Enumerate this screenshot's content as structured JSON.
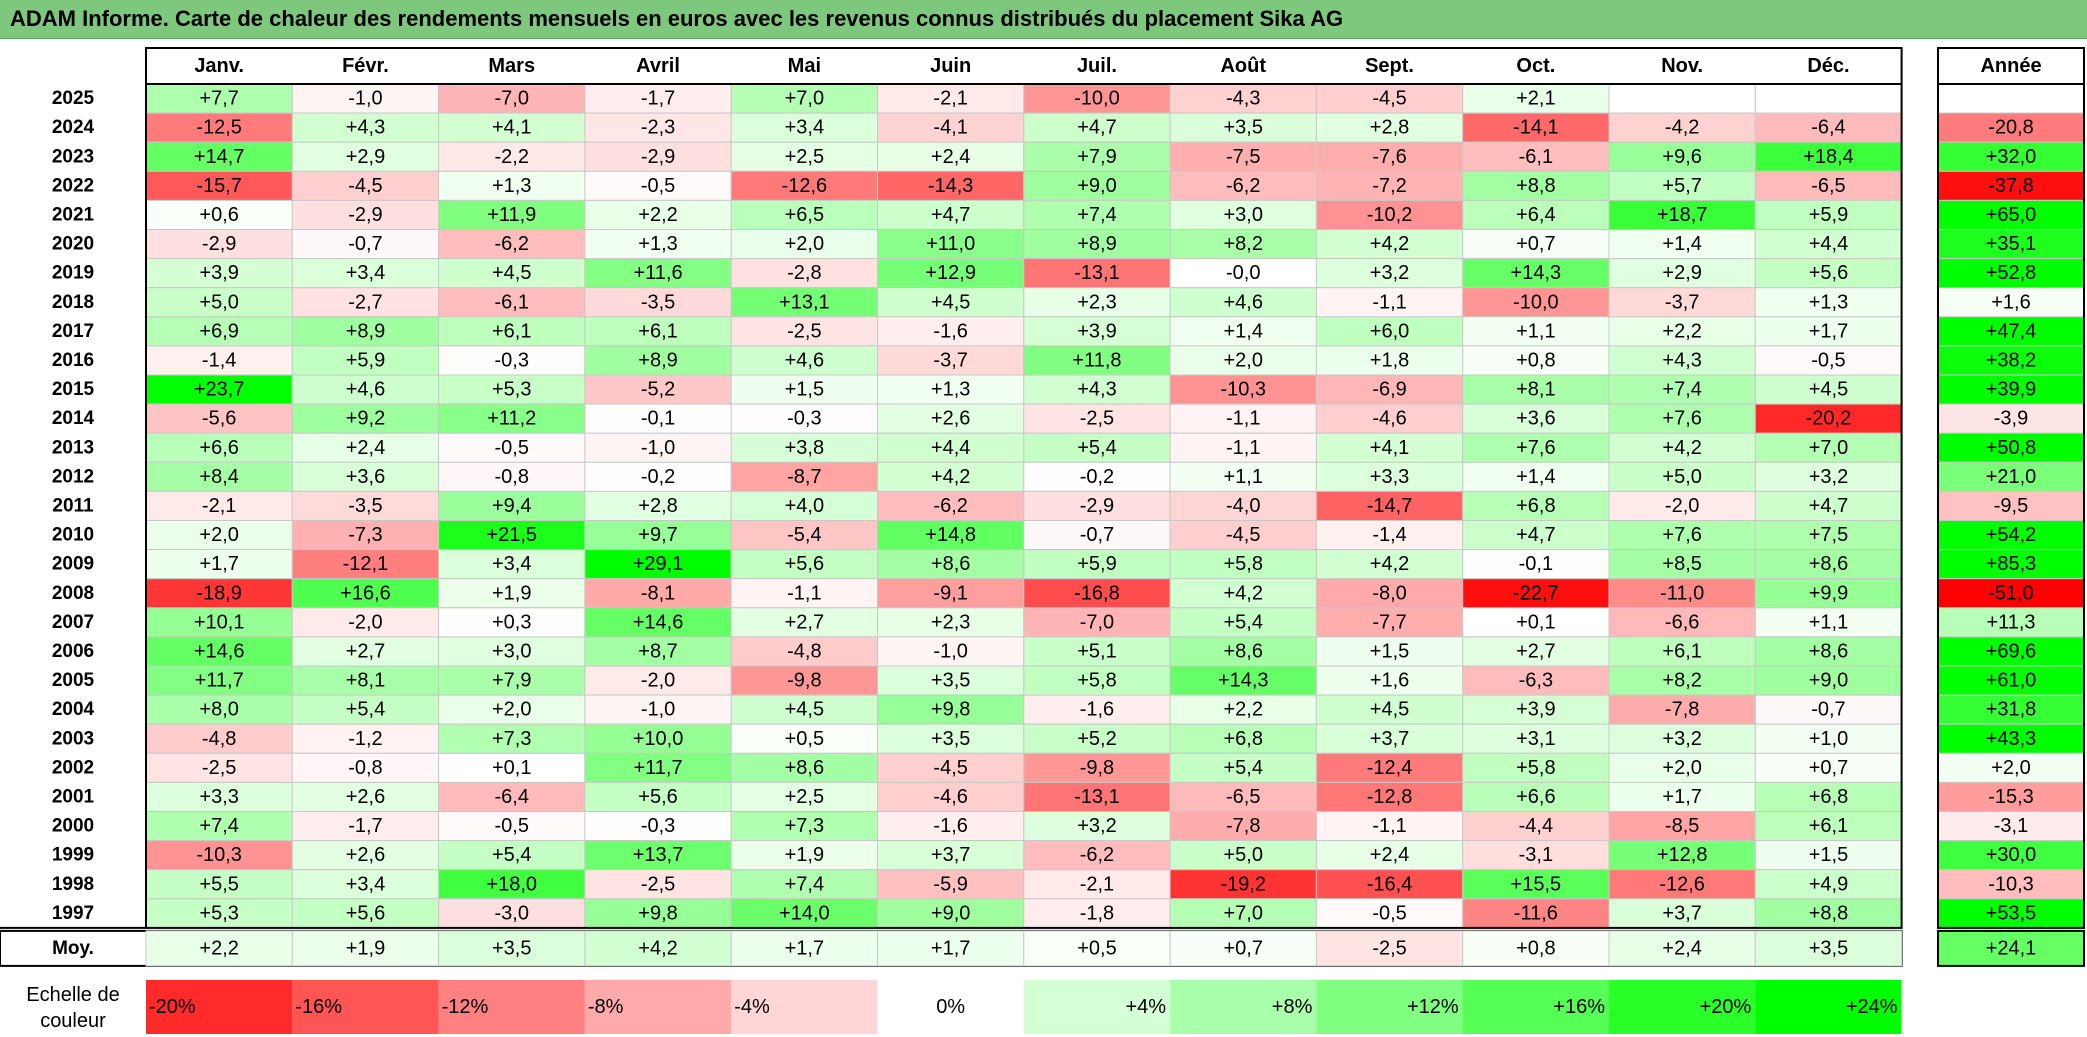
{
  "title": "ADAM Informe. Carte de chaleur des rendements mensuels en euros avec les revenus connus distribués du placement Sika AG",
  "colors": {
    "title_bg": "#7ec87e",
    "negative_max": "#ff0000",
    "neutral": "#ffffff",
    "positive_max": "#00ff00"
  },
  "chart_data": {
    "type": "heatmap",
    "months": [
      "Janv.",
      "Févr.",
      "Mars",
      "Avril",
      "Mai",
      "Juin",
      "Juil.",
      "Août",
      "Sept.",
      "Oct.",
      "Nov.",
      "Déc."
    ],
    "year_header": "Année",
    "rows": [
      {
        "year": "2025",
        "values": [
          "+7,7",
          "-1,0",
          "-7,0",
          "-1,7",
          "+7,0",
          "-2,1",
          "-10,0",
          "-4,3",
          "-4,5",
          "+2,1",
          "",
          ""
        ],
        "annual": ""
      },
      {
        "year": "2024",
        "values": [
          "-12,5",
          "+4,3",
          "+4,1",
          "-2,3",
          "+3,4",
          "-4,1",
          "+4,7",
          "+3,5",
          "+2,8",
          "-14,1",
          "-4,2",
          "-6,4"
        ],
        "annual": "-20,8"
      },
      {
        "year": "2023",
        "values": [
          "+14,7",
          "+2,9",
          "-2,2",
          "-2,9",
          "+2,5",
          "+2,4",
          "+7,9",
          "-7,5",
          "-7,6",
          "-6,1",
          "+9,6",
          "+18,4"
        ],
        "annual": "+32,0"
      },
      {
        "year": "2022",
        "values": [
          "-15,7",
          "-4,5",
          "+1,3",
          "-0,5",
          "-12,6",
          "-14,3",
          "+9,0",
          "-6,2",
          "-7,2",
          "+8,8",
          "+5,7",
          "-6,5"
        ],
        "annual": "-37,8"
      },
      {
        "year": "2021",
        "values": [
          "+0,6",
          "-2,9",
          "+11,9",
          "+2,2",
          "+6,5",
          "+4,7",
          "+7,4",
          "+3,0",
          "-10,2",
          "+6,4",
          "+18,7",
          "+5,9"
        ],
        "annual": "+65,0"
      },
      {
        "year": "2020",
        "values": [
          "-2,9",
          "-0,7",
          "-6,2",
          "+1,3",
          "+2,0",
          "+11,0",
          "+8,9",
          "+8,2",
          "+4,2",
          "+0,7",
          "+1,4",
          "+4,4"
        ],
        "annual": "+35,1"
      },
      {
        "year": "2019",
        "values": [
          "+3,9",
          "+3,4",
          "+4,5",
          "+11,6",
          "-2,8",
          "+12,9",
          "-13,1",
          "-0,0",
          "+3,2",
          "+14,3",
          "+2,9",
          "+5,6"
        ],
        "annual": "+52,8"
      },
      {
        "year": "2018",
        "values": [
          "+5,0",
          "-2,7",
          "-6,1",
          "-3,5",
          "+13,1",
          "+4,5",
          "+2,3",
          "+4,6",
          "-1,1",
          "-10,0",
          "-3,7",
          "+1,3"
        ],
        "annual": "+1,6"
      },
      {
        "year": "2017",
        "values": [
          "+6,9",
          "+8,9",
          "+6,1",
          "+6,1",
          "-2,5",
          "-1,6",
          "+3,9",
          "+1,4",
          "+6,0",
          "+1,1",
          "+2,2",
          "+1,7"
        ],
        "annual": "+47,4"
      },
      {
        "year": "2016",
        "values": [
          "-1,4",
          "+5,9",
          "-0,3",
          "+8,9",
          "+4,6",
          "-3,7",
          "+11,8",
          "+2,0",
          "+1,8",
          "+0,8",
          "+4,3",
          "-0,5"
        ],
        "annual": "+38,2"
      },
      {
        "year": "2015",
        "values": [
          "+23,7",
          "+4,6",
          "+5,3",
          "-5,2",
          "+1,5",
          "+1,3",
          "+4,3",
          "-10,3",
          "-6,9",
          "+8,1",
          "+7,4",
          "+4,5"
        ],
        "annual": "+39,9"
      },
      {
        "year": "2014",
        "values": [
          "-5,6",
          "+9,2",
          "+11,2",
          "-0,1",
          "-0,3",
          "+2,6",
          "-2,5",
          "-1,1",
          "-4,6",
          "+3,6",
          "+7,6",
          "-20,2"
        ],
        "annual": "-3,9"
      },
      {
        "year": "2013",
        "values": [
          "+6,6",
          "+2,4",
          "-0,5",
          "-1,0",
          "+3,8",
          "+4,4",
          "+5,4",
          "-1,1",
          "+4,1",
          "+7,6",
          "+4,2",
          "+7,0"
        ],
        "annual": "+50,8"
      },
      {
        "year": "2012",
        "values": [
          "+8,4",
          "+3,6",
          "-0,8",
          "-0,2",
          "-8,7",
          "+4,2",
          "-0,2",
          "+1,1",
          "+3,3",
          "+1,4",
          "+5,0",
          "+3,2"
        ],
        "annual": "+21,0"
      },
      {
        "year": "2011",
        "values": [
          "-2,1",
          "-3,5",
          "+9,4",
          "+2,8",
          "+4,0",
          "-6,2",
          "-2,9",
          "-4,0",
          "-14,7",
          "+6,8",
          "-2,0",
          "+4,7"
        ],
        "annual": "-9,5"
      },
      {
        "year": "2010",
        "values": [
          "+2,0",
          "-7,3",
          "+21,5",
          "+9,7",
          "-5,4",
          "+14,8",
          "-0,7",
          "-4,5",
          "-1,4",
          "+4,7",
          "+7,6",
          "+7,5"
        ],
        "annual": "+54,2"
      },
      {
        "year": "2009",
        "values": [
          "+1,7",
          "-12,1",
          "+3,4",
          "+29,1",
          "+5,6",
          "+8,6",
          "+5,9",
          "+5,8",
          "+4,2",
          "-0,1",
          "+8,5",
          "+8,6"
        ],
        "annual": "+85,3"
      },
      {
        "year": "2008",
        "values": [
          "-18,9",
          "+16,6",
          "+1,9",
          "-8,1",
          "-1,1",
          "-9,1",
          "-16,8",
          "+4,2",
          "-8,0",
          "-22,7",
          "-11,0",
          "+9,9"
        ],
        "annual": "-51,0"
      },
      {
        "year": "2007",
        "values": [
          "+10,1",
          "-2,0",
          "+0,3",
          "+14,6",
          "+2,7",
          "+2,3",
          "-7,0",
          "+5,4",
          "-7,7",
          "+0,1",
          "-6,6",
          "+1,1"
        ],
        "annual": "+11,3"
      },
      {
        "year": "2006",
        "values": [
          "+14,6",
          "+2,7",
          "+3,0",
          "+8,7",
          "-4,8",
          "-1,0",
          "+5,1",
          "+8,6",
          "+1,5",
          "+2,7",
          "+6,1",
          "+8,6"
        ],
        "annual": "+69,6"
      },
      {
        "year": "2005",
        "values": [
          "+11,7",
          "+8,1",
          "+7,9",
          "-2,0",
          "-9,8",
          "+3,5",
          "+5,8",
          "+14,3",
          "+1,6",
          "-6,3",
          "+8,2",
          "+9,0"
        ],
        "annual": "+61,0"
      },
      {
        "year": "2004",
        "values": [
          "+8,0",
          "+5,4",
          "+2,0",
          "-1,0",
          "+4,5",
          "+9,8",
          "-1,6",
          "+2,2",
          "+4,5",
          "+3,9",
          "-7,8",
          "-0,7"
        ],
        "annual": "+31,8"
      },
      {
        "year": "2003",
        "values": [
          "-4,8",
          "-1,2",
          "+7,3",
          "+10,0",
          "+0,5",
          "+3,5",
          "+5,2",
          "+6,8",
          "+3,7",
          "+3,1",
          "+3,2",
          "+1,0"
        ],
        "annual": "+43,3"
      },
      {
        "year": "2002",
        "values": [
          "-2,5",
          "-0,8",
          "+0,1",
          "+11,7",
          "+8,6",
          "-4,5",
          "-9,8",
          "+5,4",
          "-12,4",
          "+5,8",
          "+2,0",
          "+0,7"
        ],
        "annual": "+2,0"
      },
      {
        "year": "2001",
        "values": [
          "+3,3",
          "+2,6",
          "-6,4",
          "+5,6",
          "+2,5",
          "-4,6",
          "-13,1",
          "-6,5",
          "-12,8",
          "+6,6",
          "+1,7",
          "+6,8"
        ],
        "annual": "-15,3"
      },
      {
        "year": "2000",
        "values": [
          "+7,4",
          "-1,7",
          "-0,5",
          "-0,3",
          "+7,3",
          "-1,6",
          "+3,2",
          "-7,8",
          "-1,1",
          "-4,4",
          "-8,5",
          "+6,1"
        ],
        "annual": "-3,1"
      },
      {
        "year": "1999",
        "values": [
          "-10,3",
          "+2,6",
          "+5,4",
          "+13,7",
          "+1,9",
          "+3,7",
          "-6,2",
          "+5,0",
          "+2,4",
          "-3,1",
          "+12,8",
          "+1,5"
        ],
        "annual": "+30,0"
      },
      {
        "year": "1998",
        "values": [
          "+5,5",
          "+3,4",
          "+18,0",
          "-2,5",
          "+7,4",
          "-5,9",
          "-2,1",
          "-19,2",
          "-16,4",
          "+15,5",
          "-12,6",
          "+4,9"
        ],
        "annual": "-10,3"
      },
      {
        "year": "1997",
        "values": [
          "+5,3",
          "+5,6",
          "-3,0",
          "+9,8",
          "+14,0",
          "+9,0",
          "-1,8",
          "+7,0",
          "-0,5",
          "-11,6",
          "+3,7",
          "+8,8"
        ],
        "annual": "+53,5"
      }
    ],
    "average": {
      "label": "Moy.",
      "values": [
        "+2,2",
        "+1,9",
        "+3,5",
        "+4,2",
        "+1,7",
        "+1,7",
        "+0,5",
        "+0,7",
        "-2,5",
        "+0,8",
        "+2,4",
        "+3,5"
      ],
      "annual": "+24,1"
    },
    "scale": {
      "label_line1": "Echelle de",
      "label_line2": "couleur",
      "stops": [
        {
          "label": "-20%",
          "value": -20
        },
        {
          "label": "-16%",
          "value": -16
        },
        {
          "label": "-12%",
          "value": -12
        },
        {
          "label": "-8%",
          "value": -8
        },
        {
          "label": "-4%",
          "value": -4
        },
        {
          "label": "0%",
          "value": 0
        },
        {
          "label": "+4%",
          "value": 4
        },
        {
          "label": "+8%",
          "value": 8
        },
        {
          "label": "+12%",
          "value": 12
        },
        {
          "label": "+16%",
          "value": 16
        },
        {
          "label": "+20%",
          "value": 20
        },
        {
          "label": "+24%",
          "value": 24
        }
      ]
    }
  }
}
